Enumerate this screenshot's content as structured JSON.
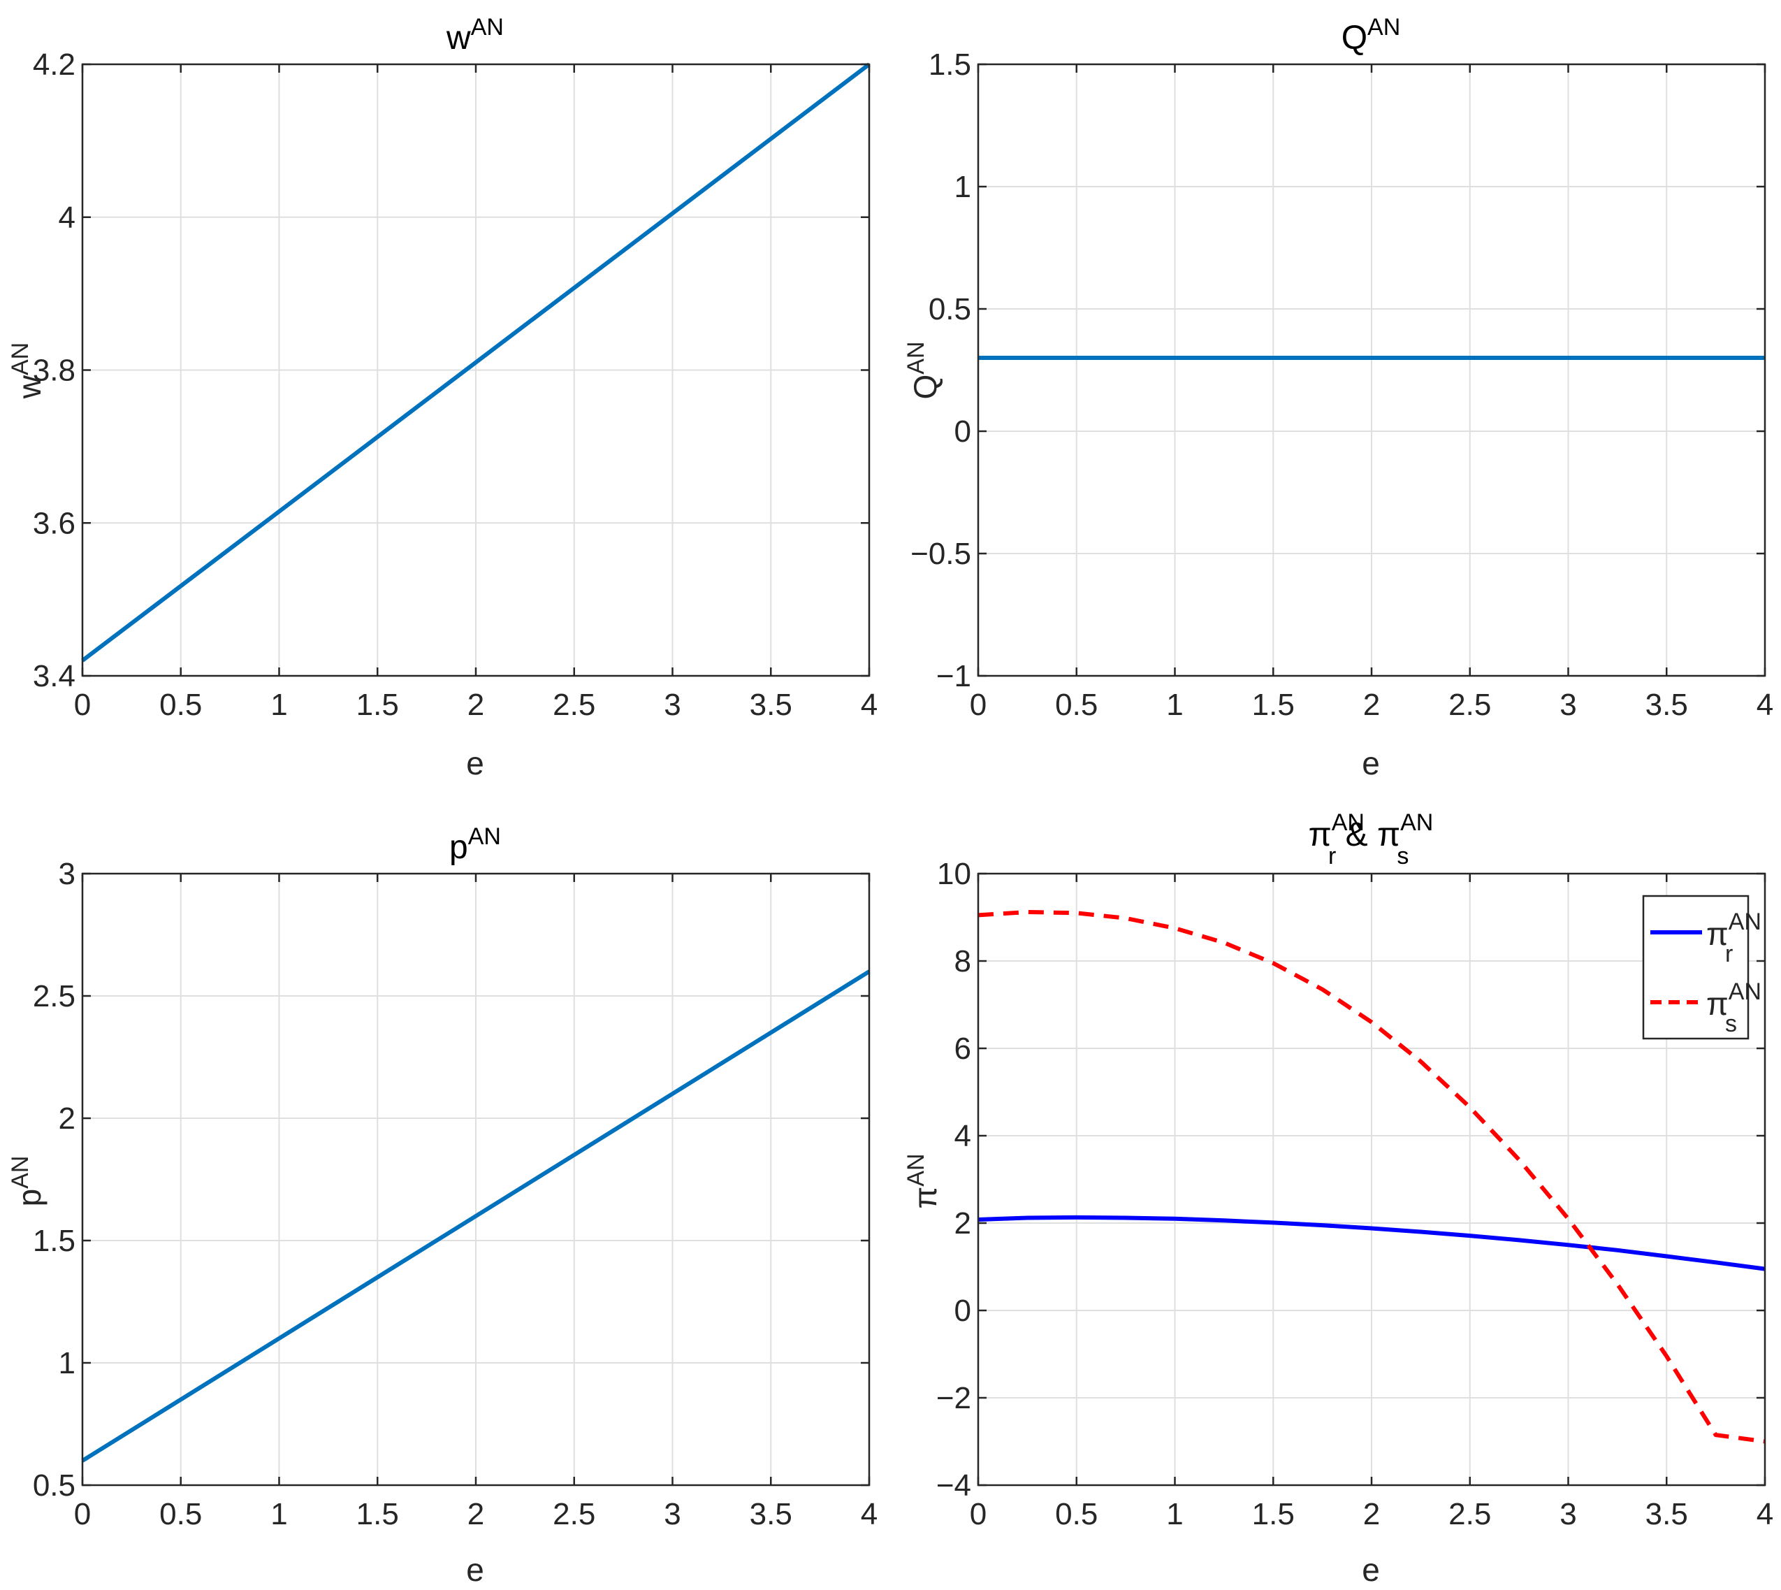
{
  "figure": {
    "sup": "AN",
    "amp": " & "
  },
  "chart_data": [
    {
      "id": "w",
      "type": "line",
      "title": {
        "base": "w",
        "sup": "AN"
      },
      "xlabel": "e",
      "ylabel": {
        "base": "w",
        "sup": "AN"
      },
      "xlim": [
        0,
        4
      ],
      "ylim": [
        3.4,
        4.2
      ],
      "xticks": [
        0,
        0.5,
        1,
        1.5,
        2,
        2.5,
        3,
        3.5,
        4
      ],
      "xtick_labels": [
        "0",
        "0.5",
        "1",
        "1.5",
        "2",
        "2.5",
        "3",
        "3.5",
        "4"
      ],
      "yticks": [
        3.4,
        3.6,
        3.8,
        4,
        4.2
      ],
      "ytick_labels": [
        "3.4",
        "3.6",
        "3.8",
        "4",
        "4.2"
      ],
      "grid": true,
      "series": [
        {
          "color": "#0072BD",
          "style": "solid",
          "x": [
            0,
            4
          ],
          "y": [
            3.42,
            4.2
          ]
        }
      ]
    },
    {
      "id": "Q",
      "type": "line",
      "title": {
        "base": "Q",
        "sup": "AN"
      },
      "xlabel": "e",
      "ylabel": {
        "base": "Q",
        "sup": "AN"
      },
      "xlim": [
        0,
        4
      ],
      "ylim": [
        -1,
        1.5
      ],
      "xticks": [
        0,
        0.5,
        1,
        1.5,
        2,
        2.5,
        3,
        3.5,
        4
      ],
      "xtick_labels": [
        "0",
        "0.5",
        "1",
        "1.5",
        "2",
        "2.5",
        "3",
        "3.5",
        "4"
      ],
      "yticks": [
        -1,
        -0.5,
        0,
        0.5,
        1,
        1.5
      ],
      "ytick_labels": [
        "−1",
        "−0.5",
        "0",
        "0.5",
        "1",
        "1.5"
      ],
      "grid": true,
      "series": [
        {
          "color": "#0072BD",
          "style": "solid",
          "x": [
            0,
            4
          ],
          "y": [
            0.3,
            0.3
          ]
        }
      ]
    },
    {
      "id": "p",
      "type": "line",
      "title": {
        "base": "p",
        "sup": "AN"
      },
      "xlabel": "e",
      "ylabel": {
        "base": "p",
        "sup": "AN"
      },
      "xlim": [
        0,
        4
      ],
      "ylim": [
        0.5,
        3
      ],
      "xticks": [
        0,
        0.5,
        1,
        1.5,
        2,
        2.5,
        3,
        3.5,
        4
      ],
      "xtick_labels": [
        "0",
        "0.5",
        "1",
        "1.5",
        "2",
        "2.5",
        "3",
        "3.5",
        "4"
      ],
      "yticks": [
        0.5,
        1,
        1.5,
        2,
        2.5,
        3
      ],
      "ytick_labels": [
        "0.5",
        "1",
        "1.5",
        "2",
        "2.5",
        "3"
      ],
      "grid": true,
      "series": [
        {
          "color": "#0072BD",
          "style": "solid",
          "x": [
            0,
            4
          ],
          "y": [
            0.6,
            2.6
          ]
        }
      ]
    },
    {
      "id": "pi",
      "type": "line",
      "title": {
        "r": "r",
        "s": "s",
        "sup": "AN",
        "sym": "π"
      },
      "xlabel": "e",
      "ylabel": {
        "base": "π",
        "sup": "AN"
      },
      "xlim": [
        0,
        4
      ],
      "ylim": [
        -4,
        10
      ],
      "xticks": [
        0,
        0.5,
        1,
        1.5,
        2,
        2.5,
        3,
        3.5,
        4
      ],
      "xtick_labels": [
        "0",
        "0.5",
        "1",
        "1.5",
        "2",
        "2.5",
        "3",
        "3.5",
        "4"
      ],
      "yticks": [
        -4,
        -2,
        0,
        2,
        4,
        6,
        8,
        10
      ],
      "ytick_labels": [
        "−4",
        "−2",
        "0",
        "2",
        "4",
        "6",
        "8",
        "10"
      ],
      "grid": true,
      "legend": "top-right",
      "series": [
        {
          "sym": "π",
          "sub": "r",
          "sup": "AN",
          "color": "#0000FF",
          "style": "solid",
          "x": [
            0,
            0.25,
            0.5,
            0.75,
            1,
            1.25,
            1.5,
            1.75,
            2,
            2.25,
            2.5,
            2.75,
            3,
            3.25,
            3.5,
            3.75,
            4
          ],
          "y": [
            2.08,
            2.12,
            2.13,
            2.12,
            2.1,
            2.06,
            2.01,
            1.95,
            1.88,
            1.8,
            1.71,
            1.61,
            1.5,
            1.38,
            1.24,
            1.1,
            0.95
          ]
        },
        {
          "sym": "π",
          "sub": "s",
          "sup": "AN",
          "color": "#FF0000",
          "style": "dashed",
          "x": [
            0,
            0.25,
            0.5,
            0.75,
            1,
            1.25,
            1.5,
            1.75,
            2,
            2.25,
            2.5,
            2.75,
            3,
            3.25,
            3.5,
            3.75,
            4
          ],
          "y": [
            9.05,
            9.12,
            9.1,
            8.98,
            8.75,
            8.42,
            7.95,
            7.35,
            6.6,
            5.7,
            4.65,
            3.45,
            2.1,
            0.6,
            -1.05,
            -2.85,
            -3.0
          ]
        }
      ]
    }
  ]
}
